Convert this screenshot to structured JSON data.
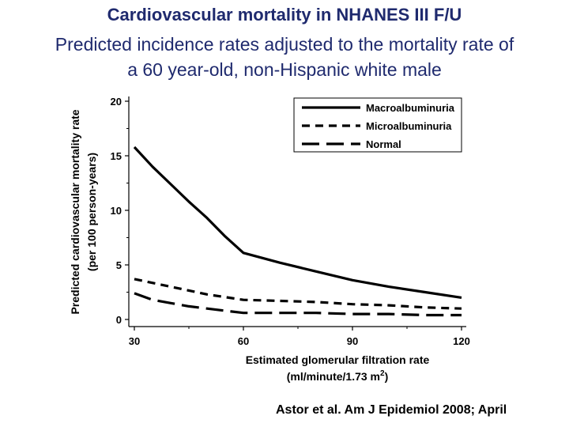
{
  "header": {
    "title": "Cardiovascular mortality in NHANES III F/U",
    "subtitle_line1": "Predicted incidence rates adjusted to the mortality rate of",
    "subtitle_line2": "a 60 year‐old, non-Hispanic white male"
  },
  "citation": "Astor et al. Am J Epidemiol 2008; April",
  "chart_data": {
    "type": "line",
    "xlabel_line1": "Estimated glomerular filtration rate",
    "xlabel_line2_main": "(ml/minute/1.73 m",
    "xlabel_line2_sup": "2",
    "xlabel_line2_end": ")",
    "ylabel_line1": "Predicted cardiovascular mortality rate",
    "ylabel_line2": "(per 100 person-years)",
    "xlim": [
      27,
      122
    ],
    "ylim": [
      0,
      20
    ],
    "xticks": [
      30,
      60,
      90,
      120
    ],
    "yticks": [
      0,
      5,
      10,
      15,
      20
    ],
    "legend_position": "top-right",
    "series": [
      {
        "name": "Macroalbuminuria",
        "style": "solid",
        "x": [
          30,
          35,
          40,
          45,
          50,
          55,
          60,
          70,
          80,
          90,
          100,
          110,
          120
        ],
        "y": [
          15.8,
          14.0,
          12.4,
          10.8,
          9.3,
          7.6,
          6.1,
          5.2,
          4.4,
          3.6,
          3.0,
          2.5,
          2.0
        ]
      },
      {
        "name": "Microalbuminuria",
        "style": "short-dash",
        "x": [
          30,
          40,
          50,
          60,
          70,
          80,
          90,
          100,
          110,
          120
        ],
        "y": [
          3.7,
          3.0,
          2.3,
          1.8,
          1.7,
          1.6,
          1.4,
          1.3,
          1.1,
          1.0
        ]
      },
      {
        "name": "Normal",
        "style": "long-dash",
        "x": [
          30,
          35,
          40,
          45,
          50,
          55,
          60,
          70,
          80,
          90,
          100,
          110,
          120
        ],
        "y": [
          2.4,
          1.8,
          1.5,
          1.2,
          1.0,
          0.8,
          0.6,
          0.6,
          0.6,
          0.5,
          0.5,
          0.4,
          0.4
        ]
      }
    ]
  }
}
